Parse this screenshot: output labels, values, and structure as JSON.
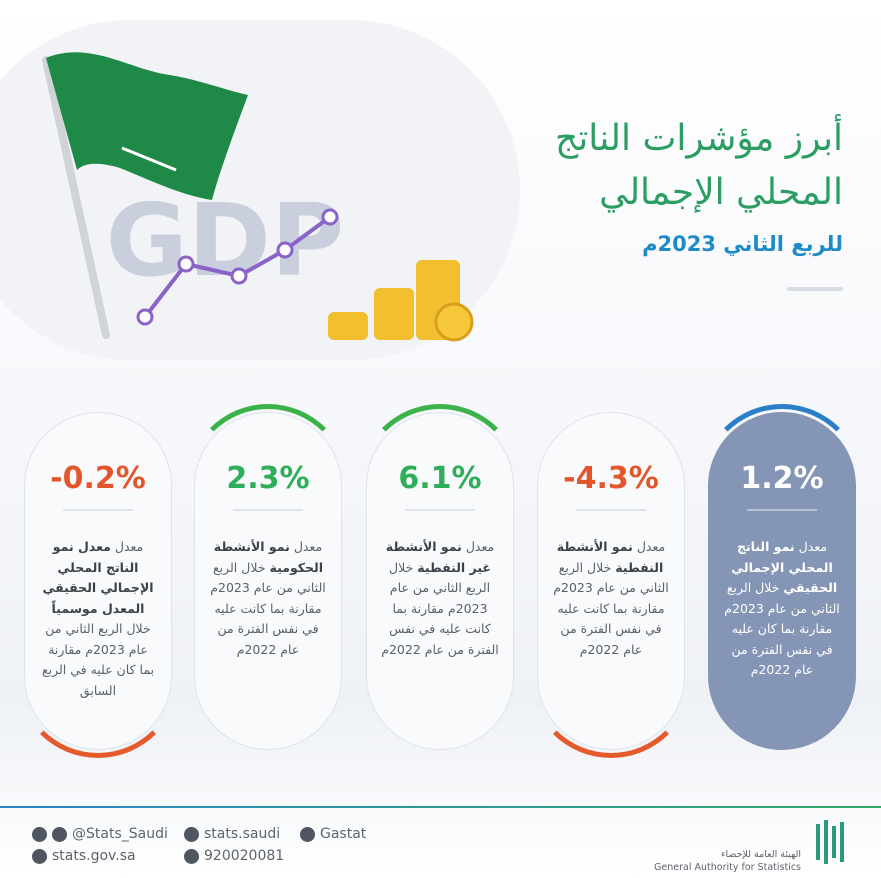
{
  "header": {
    "title_line1": "أبرز مؤشرات الناتج",
    "title_line2": "المحلي الإجمالي",
    "subtitle": "للربع الثاني 2023م",
    "illustration_text": "GDP"
  },
  "cards": [
    {
      "value": "1.2%",
      "prefix": "معدل",
      "bold": "نمو الناتج المحلي الإجمالي الحقيقي",
      "rest": "خلال الربع الثاني من عام 2023م مقارنة بما كان عليه في نفس الفترة من عام 2022م"
    },
    {
      "value": "-4.3%",
      "prefix": "معدل",
      "bold": "نمو الأنشطة النفطية",
      "rest": "خلال الربع الثاني من عام 2023م مقارنة بما كانت عليه في نفس الفترة من عام 2022م"
    },
    {
      "value": "6.1%",
      "prefix": "معدل",
      "bold": "نمو الأنشطة غير النفطية",
      "rest": "خلال الربع الثاني من عام 2023م مقارنة بما كانت عليه في نفس الفترة من عام 2022م"
    },
    {
      "value": "2.3%",
      "prefix": "معدل",
      "bold": "نمو الأنشطة الحكومية",
      "rest": "خلال الربع الثاني من عام 2023م مقارنة بما كانت عليه في نفس الفترة من عام 2022م"
    },
    {
      "value": "-0.2%",
      "prefix": "معدل",
      "bold": "معدل نمو الناتج المحلي الإجمالي الحقيقي المعدل موسمياً",
      "rest": "خلال الربع الثاني من عام 2023م مقارنة بما كان عليه في الربع السابق"
    }
  ],
  "footer": {
    "twitter": "@Stats_Saudi",
    "website": "stats.gov.sa",
    "facebook": "stats.saudi",
    "phone": "920020081",
    "linkedin": "Gastat",
    "org_ar": "الهيئة العامة للإحصاء",
    "org_en": "General Authority for Statistics"
  }
}
